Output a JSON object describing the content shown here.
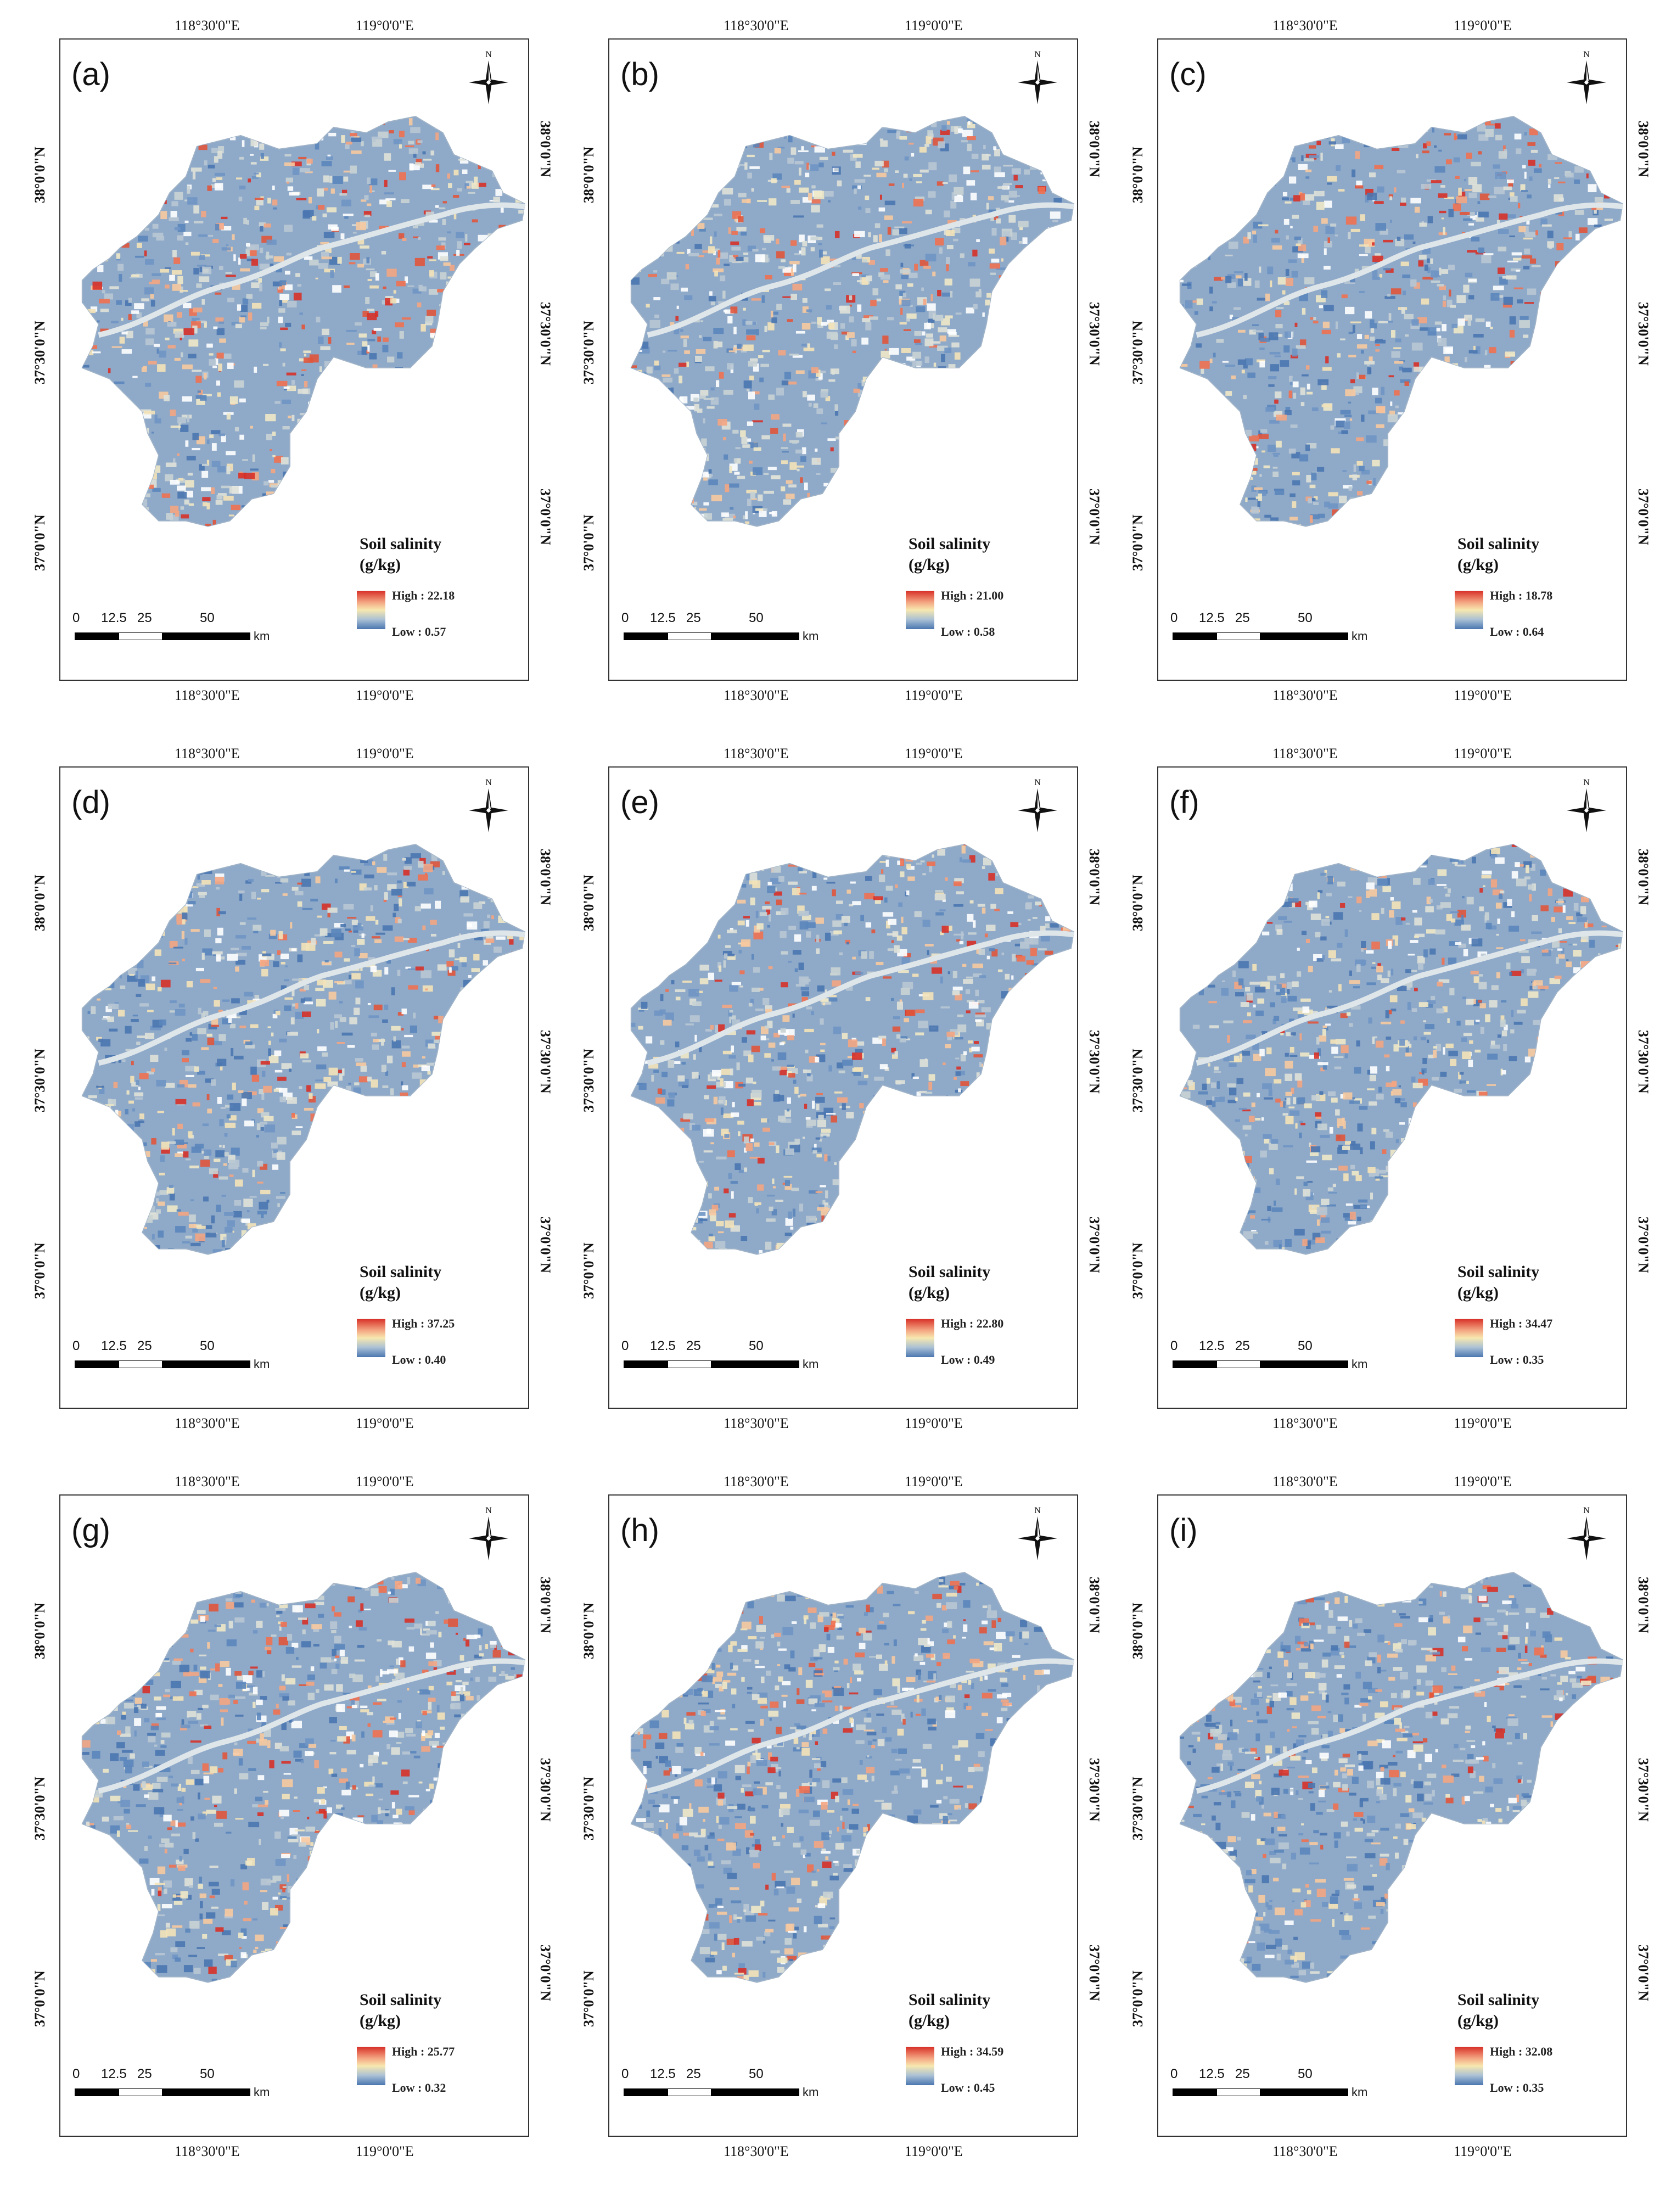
{
  "figure": {
    "lon_labels": [
      "118°30'0\"E",
      "119°0'0\"E"
    ],
    "lat_labels": [
      "38°0'0\"N",
      "37°30'0\"N",
      "37°0'0\"N"
    ],
    "north_label": "N",
    "legend_title_line1": "Soil salinity",
    "legend_title_line2": "(g/kg)",
    "scale_ticks": [
      "0",
      "12.5",
      "25",
      "50"
    ],
    "scale_unit": "km",
    "colors": {
      "high": "#d73027",
      "mid": "#f7e8b0",
      "low": "#4a76b0",
      "base": "#8fa9c8"
    }
  },
  "panels": [
    {
      "letter": "(a)",
      "high": "High : 22.18",
      "low": "Low : 0.57",
      "redness": 0.55,
      "blueness": 0.45
    },
    {
      "letter": "(b)",
      "high": "High : 21.00",
      "low": "Low : 0.58",
      "redness": 0.5,
      "blueness": 0.35
    },
    {
      "letter": "(c)",
      "high": "High : 18.78",
      "low": "Low : 0.64",
      "redness": 0.85,
      "blueness": 0.75
    },
    {
      "letter": "(d)",
      "high": "High : 37.25",
      "low": "Low : 0.40",
      "redness": 0.45,
      "blueness": 0.7
    },
    {
      "letter": "(e)",
      "high": "High : 22.80",
      "low": "Low : 0.49",
      "redness": 0.55,
      "blueness": 0.45
    },
    {
      "letter": "(f)",
      "high": "High : 34.47",
      "low": "Low : 0.35",
      "redness": 0.4,
      "blueness": 0.72
    },
    {
      "letter": "(g)",
      "high": "High : 25.77",
      "low": "Low : 0.32",
      "redness": 0.55,
      "blueness": 0.62
    },
    {
      "letter": "(h)",
      "high": "High : 34.59",
      "low": "Low : 0.45",
      "redness": 0.4,
      "blueness": 0.7
    },
    {
      "letter": "(i)",
      "high": "High : 32.08",
      "low": "Low : 0.35",
      "redness": 0.42,
      "blueness": 0.7
    }
  ]
}
